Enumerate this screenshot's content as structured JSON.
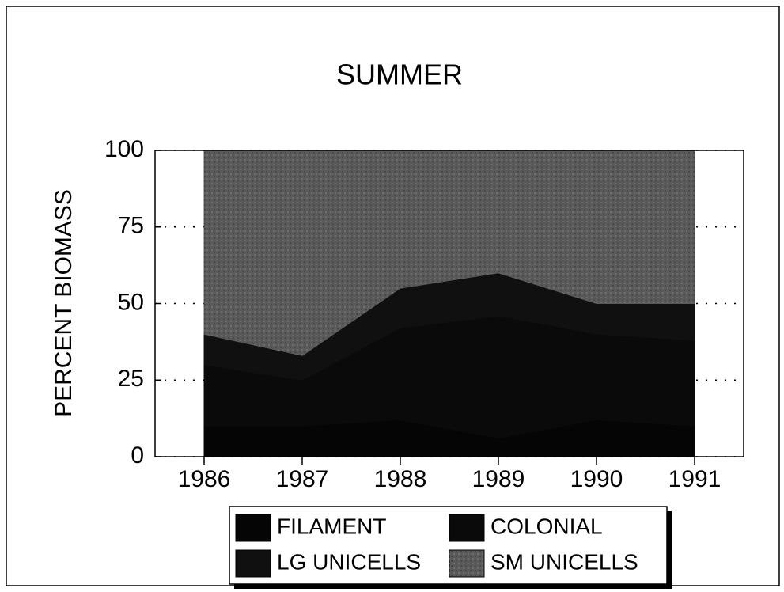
{
  "chart_data": {
    "type": "area",
    "stacked": true,
    "title": "SUMMER",
    "y_label": "PERCENT BIOMASS",
    "categories": [
      "1986",
      "1987",
      "1988",
      "1989",
      "1990",
      "1991"
    ],
    "series": [
      {
        "name": "FILAMENT",
        "color": "#050505",
        "values": [
          10,
          10,
          12,
          6,
          12,
          10
        ]
      },
      {
        "name": "COLONIAL",
        "color": "#0a0a0a",
        "values": [
          20,
          15,
          30,
          40,
          28,
          28
        ]
      },
      {
        "name": "LG UNICELLS",
        "color": "#101010",
        "values": [
          10,
          8,
          13,
          14,
          10,
          12
        ]
      },
      {
        "name": "SM UNICELLS",
        "color": "#5a5a5a",
        "values": [
          60,
          67,
          45,
          40,
          50,
          50
        ]
      }
    ],
    "ylim": [
      0,
      100
    ],
    "yticks": [
      0,
      25,
      50,
      75,
      100
    ],
    "grid": true
  }
}
